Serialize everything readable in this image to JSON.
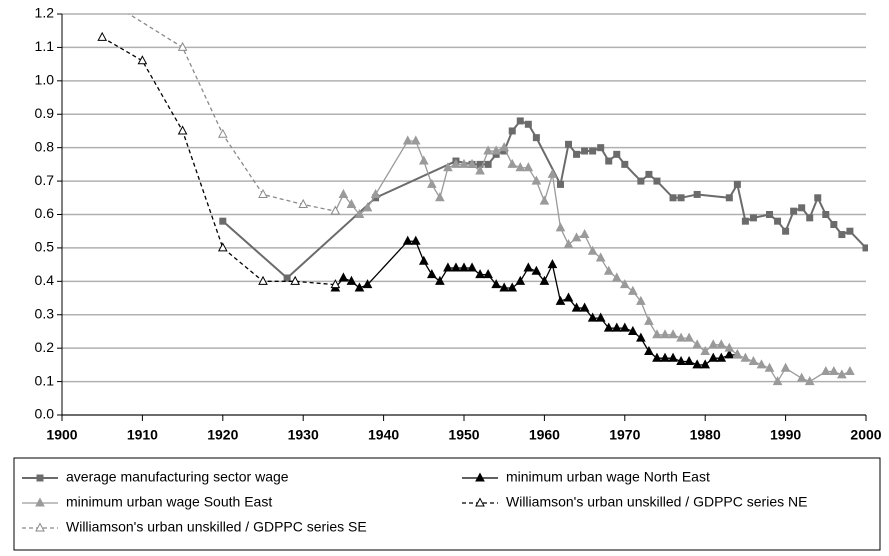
{
  "chart_data": {
    "type": "line",
    "xlim": [
      1900,
      2000
    ],
    "xticks": [
      1900,
      1910,
      1920,
      1930,
      1940,
      1950,
      1960,
      1970,
      1980,
      1990,
      2000
    ],
    "ylim": [
      0,
      1.2
    ],
    "yticks": [
      {
        "value": 0,
        "label": "0.0"
      },
      0.1,
      0.2,
      0.3,
      0.4,
      0.5,
      0.6,
      0.7,
      0.8,
      0.9,
      {
        "value": 1,
        "label": "1.0"
      },
      1.1,
      1.2
    ],
    "grid": true,
    "series": [
      {
        "name": "average manufacturing sector wage",
        "color": "#6b6b6b",
        "dash": false,
        "marker": "square",
        "x": [
          1920,
          1928,
          1939,
          1949,
          1951,
          1952,
          1953,
          1954,
          1955,
          1956,
          1957,
          1958,
          1959,
          1962,
          1963,
          1964,
          1965,
          1966,
          1967,
          1968,
          1969,
          1970,
          1972,
          1973,
          1974,
          1976,
          1977,
          1979,
          1983,
          1984,
          1985,
          1986,
          1988,
          1989,
          1990,
          1991,
          1992,
          1993,
          1994,
          1995,
          1996,
          1997,
          1998,
          2000
        ],
        "values": [
          0.58,
          0.41,
          0.65,
          0.76,
          0.75,
          0.75,
          0.75,
          0.78,
          0.79,
          0.85,
          0.88,
          0.87,
          0.83,
          0.69,
          0.81,
          0.78,
          0.79,
          0.79,
          0.8,
          0.76,
          0.78,
          0.75,
          0.7,
          0.72,
          0.7,
          0.65,
          0.65,
          0.66,
          0.65,
          0.69,
          0.58,
          0.59,
          0.6,
          0.58,
          0.55,
          0.61,
          0.62,
          0.59,
          0.65,
          0.6,
          0.57,
          0.54,
          0.55,
          0.5
        ]
      },
      {
        "name": "minimum urban wage North East",
        "color": "#000000",
        "dash": false,
        "marker": "triangle",
        "x": [
          1934,
          1935,
          1936,
          1937,
          1938,
          1943,
          1944,
          1945,
          1946,
          1947,
          1948,
          1949,
          1950,
          1951,
          1952,
          1953,
          1954,
          1955,
          1956,
          1957,
          1958,
          1959,
          1960,
          1961,
          1962,
          1963,
          1964,
          1965,
          1966,
          1967,
          1968,
          1969,
          1970,
          1971,
          1972,
          1973,
          1974,
          1975,
          1976,
          1977,
          1978,
          1979,
          1980,
          1981,
          1982,
          1983,
          1984
        ],
        "values": [
          0.38,
          0.41,
          0.4,
          0.38,
          0.39,
          0.52,
          0.52,
          0.46,
          0.42,
          0.4,
          0.44,
          0.44,
          0.44,
          0.44,
          0.42,
          0.42,
          0.39,
          0.38,
          0.38,
          0.4,
          0.44,
          0.43,
          0.4,
          0.45,
          0.34,
          0.35,
          0.32,
          0.32,
          0.29,
          0.29,
          0.26,
          0.26,
          0.26,
          0.25,
          0.23,
          0.19,
          0.17,
          0.17,
          0.17,
          0.16,
          0.16,
          0.15,
          0.15,
          0.17,
          0.17,
          0.18,
          0.18
        ]
      },
      {
        "name": "minimum urban wage South East",
        "color": "#9a9a9a",
        "dash": false,
        "marker": "triangle",
        "x": [
          1934,
          1935,
          1936,
          1937,
          1938,
          1939,
          1943,
          1944,
          1945,
          1946,
          1947,
          1948,
          1949,
          1950,
          1951,
          1952,
          1953,
          1954,
          1955,
          1956,
          1957,
          1958,
          1959,
          1960,
          1961,
          1962,
          1963,
          1964,
          1965,
          1966,
          1967,
          1968,
          1969,
          1970,
          1971,
          1972,
          1973,
          1974,
          1975,
          1976,
          1977,
          1978,
          1979,
          1980,
          1981,
          1982,
          1983,
          1984,
          1985,
          1986,
          1987,
          1988,
          1989,
          1990,
          1992,
          1993,
          1995,
          1996,
          1997,
          1998
        ],
        "values": [
          0.61,
          0.66,
          0.63,
          0.6,
          0.62,
          0.66,
          0.82,
          0.82,
          0.76,
          0.69,
          0.65,
          0.74,
          0.75,
          0.75,
          0.75,
          0.73,
          0.79,
          0.79,
          0.8,
          0.75,
          0.74,
          0.74,
          0.7,
          0.64,
          0.72,
          0.56,
          0.51,
          0.53,
          0.54,
          0.49,
          0.47,
          0.43,
          0.41,
          0.39,
          0.37,
          0.34,
          0.28,
          0.24,
          0.24,
          0.24,
          0.23,
          0.23,
          0.21,
          0.19,
          0.21,
          0.21,
          0.2,
          0.18,
          0.17,
          0.16,
          0.15,
          0.14,
          0.1,
          0.14,
          0.11,
          0.1,
          0.13,
          0.13,
          0.12,
          0.13
        ]
      },
      {
        "name": "Williamson's urban unskilled / GDPPC series NE",
        "color": "#000000",
        "dash": true,
        "marker": "open-triangle",
        "x": [
          1905,
          1910,
          1915,
          1920,
          1925,
          1929,
          1934
        ],
        "values": [
          1.13,
          1.06,
          0.85,
          0.5,
          0.4,
          0.4,
          0.39
        ]
      },
      {
        "name": "Williamson's urban unskilled / GDPPC series SE",
        "color": "#8a8a8a",
        "dash": true,
        "marker": "open-triangle",
        "x": [
          1905,
          1915,
          1920,
          1925,
          1930,
          1934
        ],
        "values": [
          1.25,
          1.1,
          0.84,
          0.66,
          0.63,
          0.61
        ]
      }
    ]
  }
}
